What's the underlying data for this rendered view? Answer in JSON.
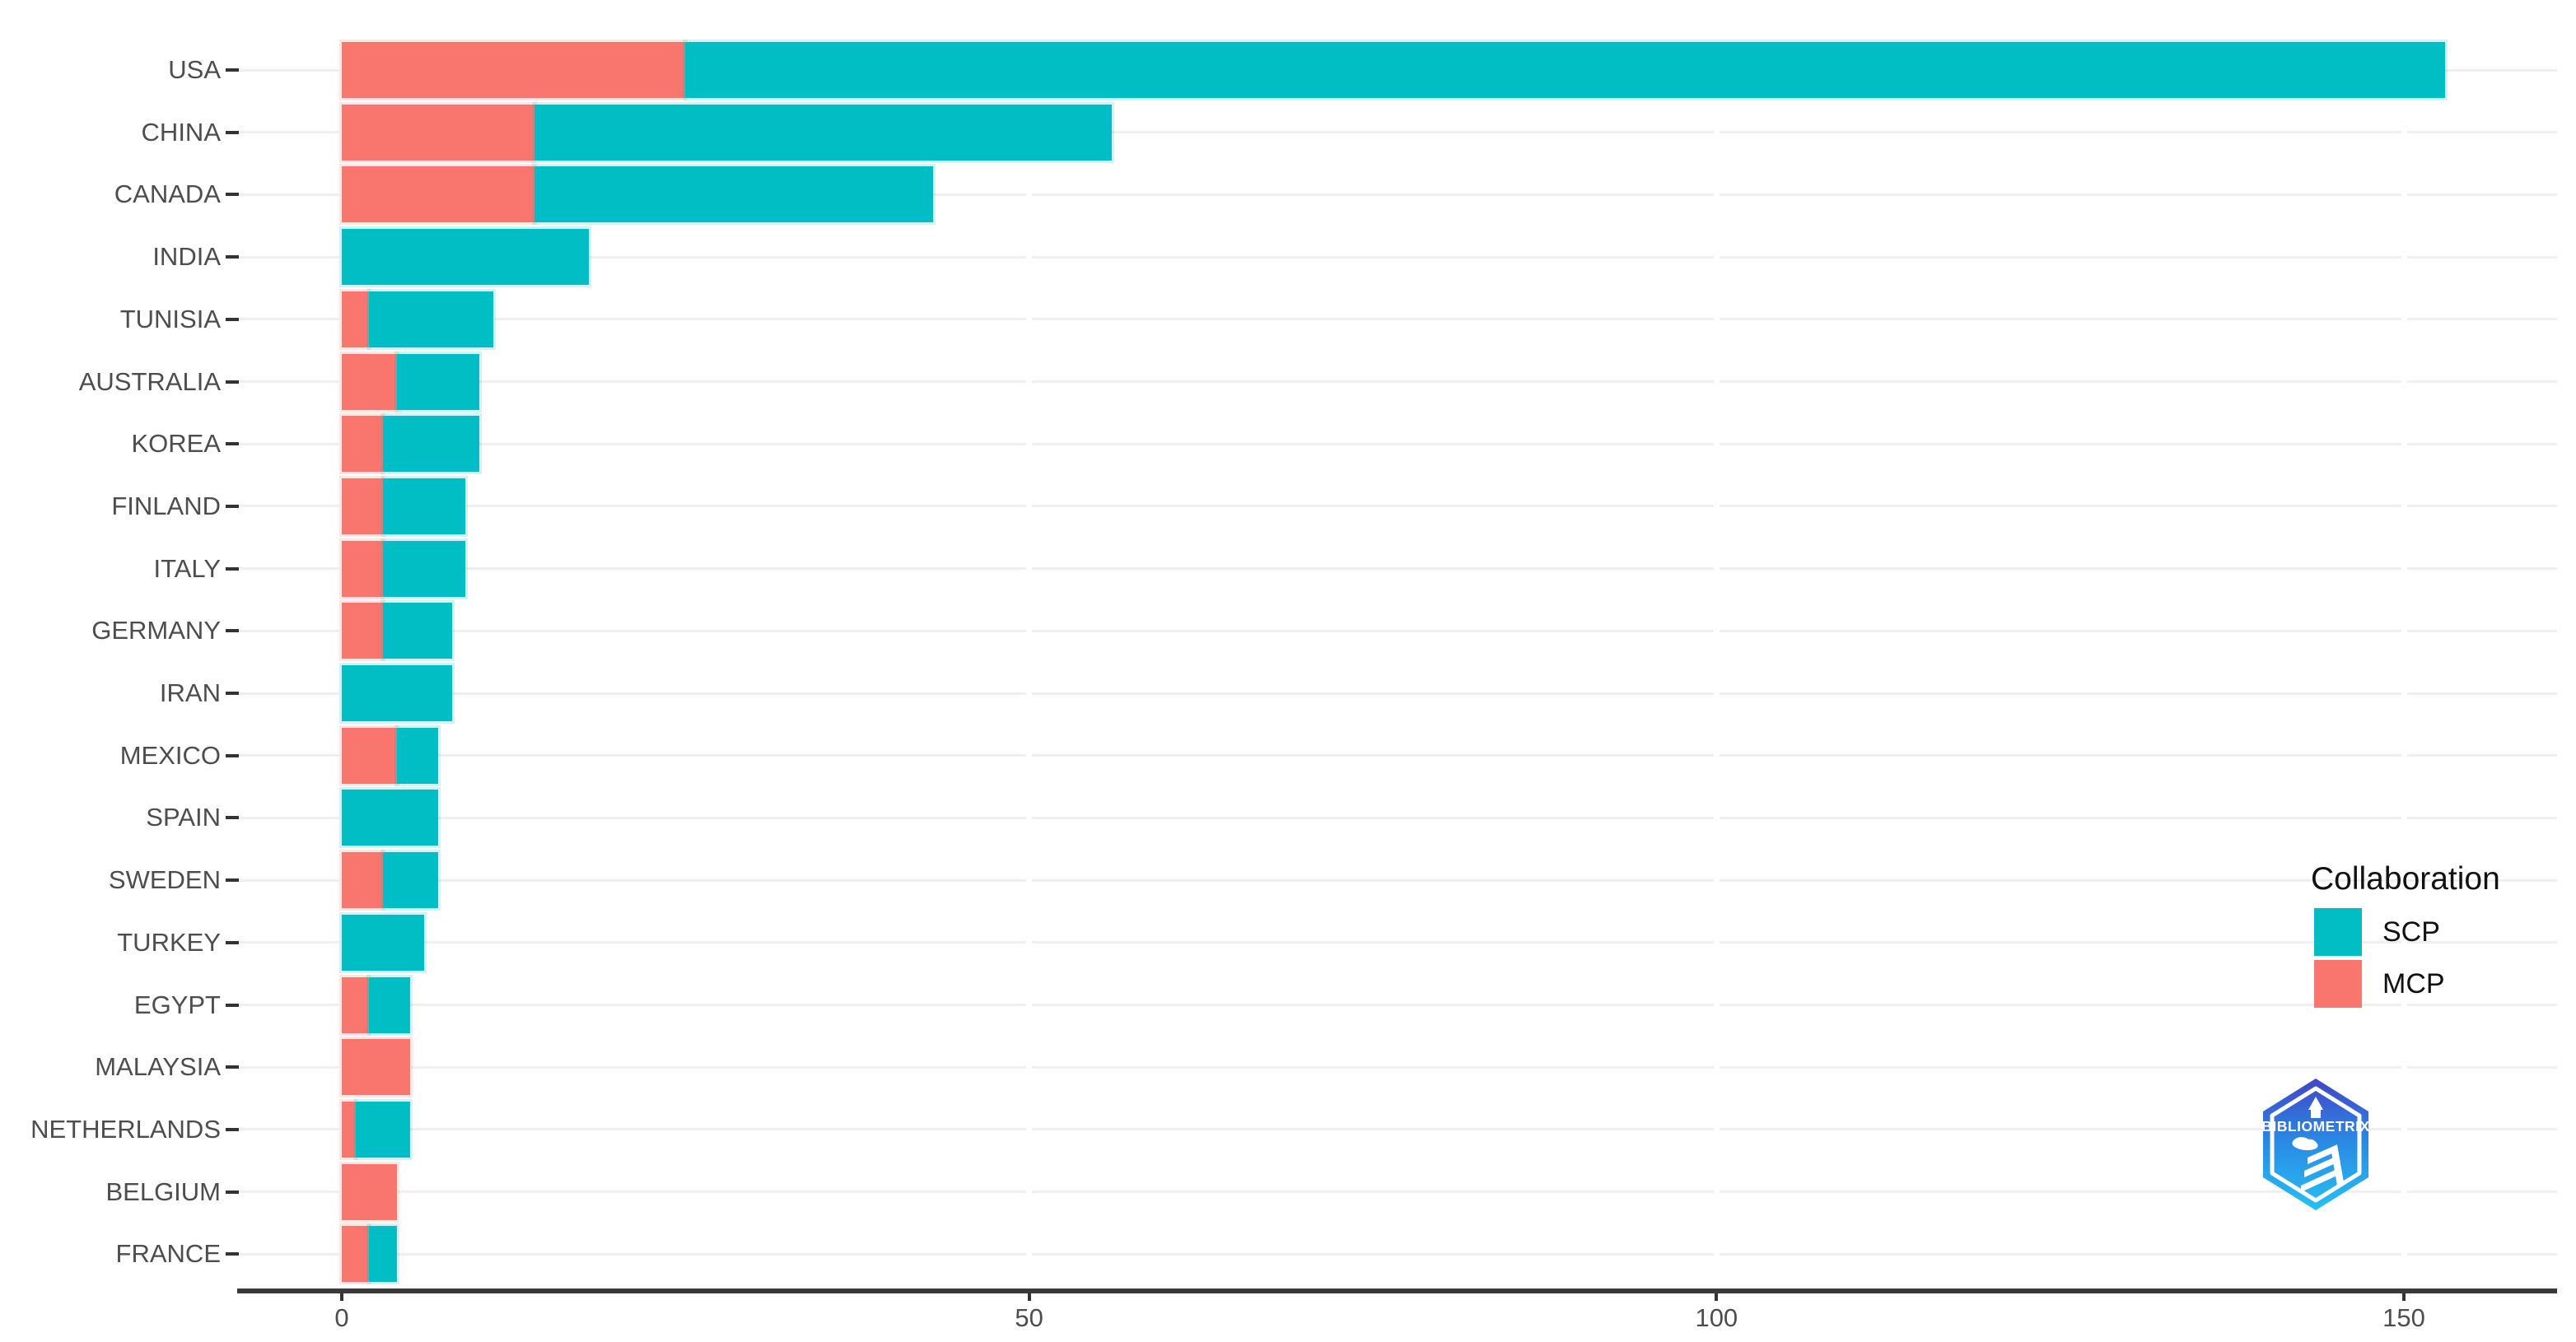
{
  "chart_data": {
    "type": "bar",
    "orientation": "horizontal",
    "stacked": true,
    "title": "",
    "xlabel": "",
    "ylabel": "",
    "categories": [
      "USA",
      "CHINA",
      "CANADA",
      "INDIA",
      "TUNISIA",
      "AUSTRALIA",
      "KOREA",
      "FINLAND",
      "ITALY",
      "GERMANY",
      "IRAN",
      "MEXICO",
      "SPAIN",
      "SWEDEN",
      "TURKEY",
      "EGYPT",
      "MALAYSIA",
      "NETHERLANDS",
      "BELGIUM",
      "FRANCE"
    ],
    "series": [
      {
        "name": "MCP",
        "color": "#F8766D",
        "values": [
          25,
          14,
          14,
          0,
          2,
          4,
          3,
          3,
          3,
          3,
          0,
          4,
          0,
          3,
          0,
          2,
          5,
          1,
          4,
          2
        ]
      },
      {
        "name": "SCP",
        "color": "#00BEC4",
        "values": [
          128,
          42,
          29,
          18,
          9,
          6,
          7,
          6,
          6,
          5,
          8,
          3,
          7,
          4,
          6,
          3,
          0,
          4,
          0,
          2
        ]
      }
    ],
    "totals": [
      153,
      56,
      43,
      18,
      11,
      10,
      10,
      9,
      9,
      8,
      8,
      7,
      7,
      7,
      6,
      5,
      5,
      5,
      4,
      4
    ],
    "x_ticks": [
      0,
      50,
      100,
      150
    ],
    "xlim": [
      0,
      161
    ],
    "grid": "horizontal light gray rows, white vertical breaks at major ticks",
    "legend": {
      "title": "Collaboration",
      "position": "right",
      "entries": [
        {
          "label": "SCP",
          "color": "#00BEC4"
        },
        {
          "label": "MCP",
          "color": "#F8766D"
        }
      ]
    }
  },
  "watermark": {
    "logo_text": "BIBLIOMETRIX"
  },
  "colors": {
    "axis_text": "#4d4d4d",
    "axis_line": "#3a3a3a",
    "gridline": "#efefef",
    "scp": "#00BEC4",
    "mcp": "#F8766D"
  }
}
